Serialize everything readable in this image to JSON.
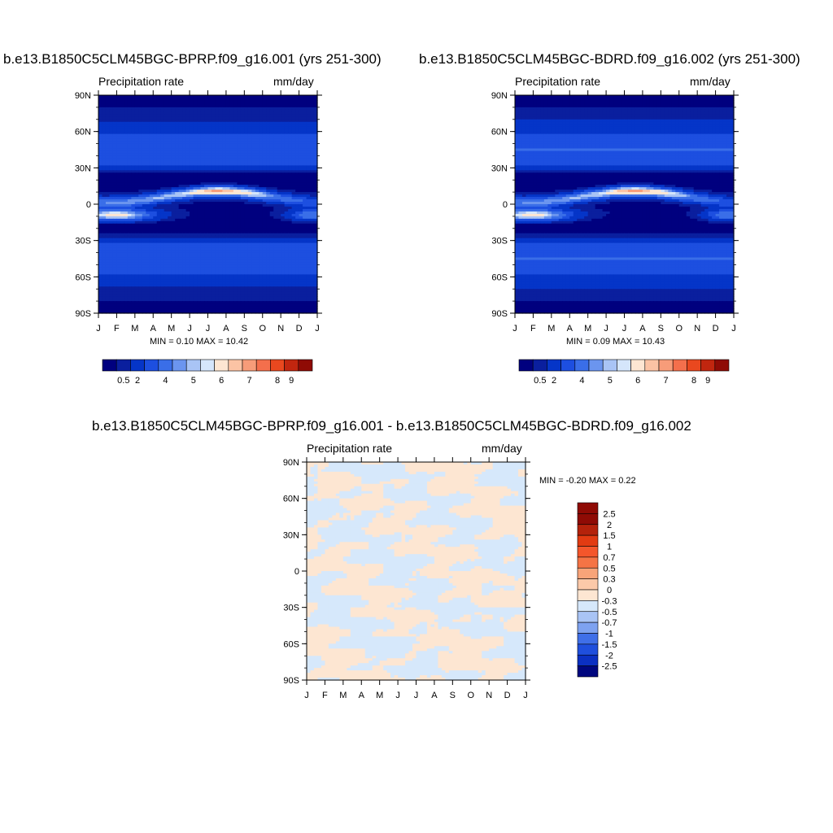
{
  "panels": [
    {
      "title": "b.e13.B1850C5CLM45BGC-BPRP.f09_g16.001 (yrs 251-300)",
      "left_label": "Precipitation rate",
      "right_label": "mm/day",
      "minmax": "MIN =   0.10 MAX =  10.42"
    },
    {
      "title": "b.e13.B1850C5CLM45BGC-BDRD.f09_g16.002 (yrs 251-300)",
      "left_label": "Precipitation rate",
      "right_label": "mm/day",
      "minmax": "MIN =   0.09 MAX =  10.43"
    },
    {
      "title": "b.e13.B1850C5CLM45BGC-BPRP.f09_g16.001 - b.e13.B1850C5CLM45BGC-BDRD.f09_g16.002",
      "left_label": "Precipitation rate",
      "right_label": "mm/day",
      "minmax": "MIN =  -0.20 MAX =   0.22"
    }
  ],
  "chart_data": [
    {
      "type": "heatmap",
      "title": "b.e13.B1850C5CLM45BGC-BPRP.f09_g16.001 (yrs 251-300)",
      "subtitle_left": "Precipitation rate",
      "subtitle_right": "mm/day",
      "x_ticks": [
        "J",
        "F",
        "M",
        "A",
        "M",
        "J",
        "J",
        "A",
        "S",
        "O",
        "N",
        "D",
        "J"
      ],
      "y_ticks": [
        "90N",
        "60N",
        "30N",
        "0",
        "30S",
        "60S",
        "90S"
      ],
      "colorbar_labels": [
        "0.5",
        "2",
        "4",
        "5",
        "6",
        "7",
        "8",
        "9"
      ],
      "min": 0.1,
      "max": 10.42,
      "units": "mm/day"
    },
    {
      "type": "heatmap",
      "title": "b.e13.B1850C5CLM45BGC-BDRD.f09_g16.002 (yrs 251-300)",
      "subtitle_left": "Precipitation rate",
      "subtitle_right": "mm/day",
      "x_ticks": [
        "J",
        "F",
        "M",
        "A",
        "M",
        "J",
        "J",
        "A",
        "S",
        "O",
        "N",
        "D",
        "J"
      ],
      "y_ticks": [
        "90N",
        "60N",
        "30N",
        "0",
        "30S",
        "60S",
        "90S"
      ],
      "colorbar_labels": [
        "0.5",
        "2",
        "4",
        "5",
        "6",
        "7",
        "8",
        "9"
      ],
      "min": 0.09,
      "max": 10.43,
      "units": "mm/day"
    },
    {
      "type": "heatmap",
      "title": "b.e13.B1850C5CLM45BGC-BPRP.f09_g16.001 - b.e13.B1850C5CLM45BGC-BDRD.f09_g16.002",
      "subtitle_left": "Precipitation rate",
      "subtitle_right": "mm/day",
      "x_ticks": [
        "J",
        "F",
        "M",
        "A",
        "M",
        "J",
        "J",
        "A",
        "S",
        "O",
        "N",
        "D",
        "J"
      ],
      "y_ticks": [
        "90N",
        "60N",
        "30N",
        "0",
        "30S",
        "60S",
        "90S"
      ],
      "colorbar_labels": [
        "2.5",
        "2",
        "1.5",
        "1",
        "0.7",
        "0.5",
        "0.3",
        "0",
        "-0.3",
        "-0.5",
        "-0.7",
        "-1",
        "-1.5",
        "-2",
        "-2.5"
      ],
      "min": -0.2,
      "max": 0.22,
      "units": "mm/day"
    }
  ],
  "colors": {
    "abs_scale": [
      "#00007f",
      "#0a1f9e",
      "#0535c8",
      "#1d4fe0",
      "#3a6ee8",
      "#6b95ef",
      "#a9c4f5",
      "#d5e6fb",
      "#fde6d2",
      "#fbc3a4",
      "#f79c79",
      "#f46f4c",
      "#e9481f",
      "#c1260f",
      "#8f0b05"
    ],
    "diff_scale": [
      "#8f0b05",
      "#b4220b",
      "#e23b12",
      "#f4562b",
      "#f57445",
      "#f8a479",
      "#fcc9a9",
      "#fde6d2",
      "#d6e8fb",
      "#a9c4f5",
      "#7ea2f0",
      "#3f6fe8",
      "#1f4fdd",
      "#0b30c2",
      "#00077f"
    ],
    "diff_pos": "#fde6d2",
    "diff_neg": "#d6e8fb"
  }
}
